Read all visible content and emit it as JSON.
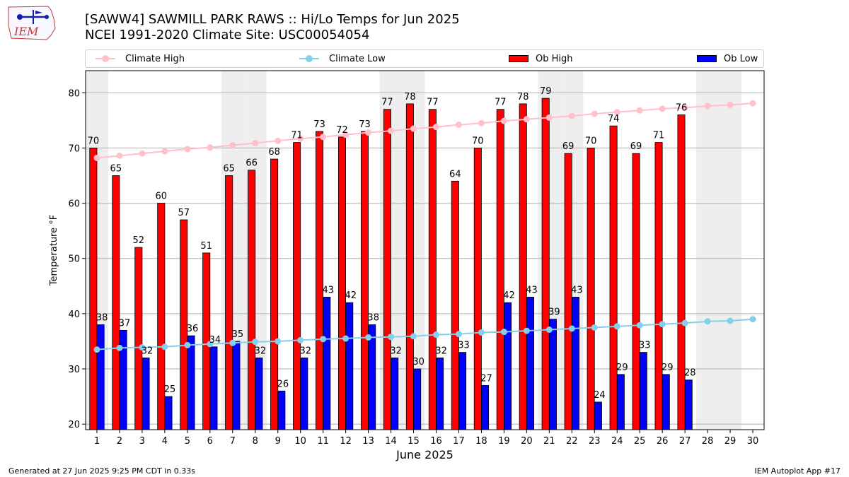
{
  "header": {
    "title_line1": "[SAWW4] SAWMILL PARK RAWS :: Hi/Lo Temps for Jun 2025",
    "title_line2": "NCEI 1991-2020 Climate Site: USC00054054",
    "logo_text": "IEM"
  },
  "legend": {
    "climate_high": "Climate High",
    "climate_low": "Climate Low",
    "ob_high": "Ob High",
    "ob_low": "Ob Low"
  },
  "footer": {
    "generated": "Generated at 27 Jun 2025 9:25 PM CDT in 0.33s",
    "app": "IEM Autoplot App #17"
  },
  "colors": {
    "ob_high": "#ff0000",
    "ob_low": "#0000ff",
    "climate_high": "#ffc0cb",
    "climate_low": "#87ceeb",
    "weekend_shade": "#eeeeee",
    "grid": "#b0b0b0"
  },
  "chart_data": {
    "type": "bar",
    "xlabel": "June 2025",
    "ylabel": "Temperature °F",
    "ylim": [
      19,
      84
    ],
    "yticks": [
      20,
      30,
      40,
      50,
      60,
      70,
      80
    ],
    "grid": "horizontal",
    "legend_position": "top",
    "days": [
      1,
      2,
      3,
      4,
      5,
      6,
      7,
      8,
      9,
      10,
      11,
      12,
      13,
      14,
      15,
      16,
      17,
      18,
      19,
      20,
      21,
      22,
      23,
      24,
      25,
      26,
      27,
      28,
      29,
      30
    ],
    "weekend_days": [
      1,
      7,
      8,
      14,
      15,
      21,
      22,
      28,
      29
    ],
    "series": [
      {
        "name": "Ob High",
        "kind": "bar",
        "values": [
          70,
          65,
          52,
          60,
          57,
          51,
          65,
          66,
          68,
          71,
          73,
          72,
          73,
          77,
          78,
          77,
          64,
          70,
          77,
          78,
          79,
          69,
          70,
          74,
          69,
          71,
          76,
          null,
          null,
          null
        ]
      },
      {
        "name": "Ob Low",
        "kind": "bar",
        "values": [
          38,
          37,
          32,
          25,
          36,
          34,
          35,
          32,
          26,
          32,
          43,
          42,
          38,
          32,
          30,
          32,
          33,
          27,
          42,
          43,
          39,
          43,
          24,
          29,
          33,
          29,
          28,
          null,
          null,
          null
        ]
      },
      {
        "name": "Climate High",
        "kind": "line",
        "values": [
          68.2,
          68.6,
          69.0,
          69.4,
          69.8,
          70.1,
          70.5,
          70.9,
          71.3,
          71.7,
          72.0,
          72.4,
          72.8,
          73.1,
          73.5,
          73.8,
          74.2,
          74.5,
          74.9,
          75.2,
          75.5,
          75.8,
          76.2,
          76.5,
          76.8,
          77.1,
          77.3,
          77.6,
          77.8,
          78.1
        ]
      },
      {
        "name": "Climate Low",
        "kind": "line",
        "values": [
          33.5,
          33.8,
          33.9,
          34.0,
          34.3,
          34.5,
          34.7,
          34.9,
          35.0,
          35.2,
          35.4,
          35.5,
          35.7,
          35.8,
          35.9,
          36.2,
          36.3,
          36.6,
          36.7,
          36.9,
          37.1,
          37.3,
          37.5,
          37.7,
          37.9,
          38.1,
          38.3,
          38.6,
          38.7,
          39.0
        ]
      }
    ]
  }
}
